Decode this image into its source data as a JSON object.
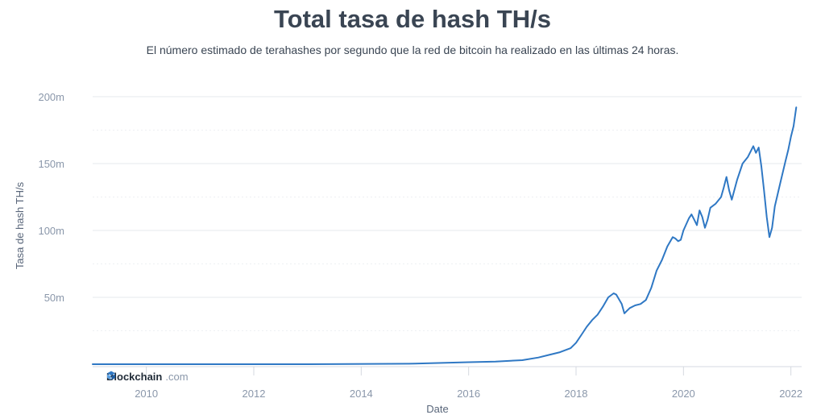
{
  "chart_data": {
    "type": "line",
    "title": "Total tasa de hash TH/s",
    "subtitle": "El número estimado de terahashes por segundo que la red de bitcoin ha realizado en las últimas 24 horas.",
    "xlabel": "Date",
    "ylabel": "Tasa de hash TH/s",
    "xlim": [
      2009.0,
      2022.2
    ],
    "ylim": [
      0,
      200000000
    ],
    "x_ticks": [
      2010,
      2012,
      2014,
      2016,
      2018,
      2020,
      2022
    ],
    "x_tick_labels": [
      "2010",
      "2012",
      "2014",
      "2016",
      "2018",
      "2020",
      "2022"
    ],
    "y_ticks": [
      50000000,
      100000000,
      150000000,
      200000000
    ],
    "y_tick_labels": [
      "50m",
      "100m",
      "150m",
      "200m"
    ],
    "grid": true,
    "line_color": "#2f78c4",
    "series": [
      {
        "x": [
          2009.0,
          2013.0,
          2015.0,
          2016.0,
          2016.5,
          2017.0,
          2017.3,
          2017.5,
          2017.7,
          2017.9,
          2018.0,
          2018.1,
          2018.2,
          2018.3,
          2018.4,
          2018.5,
          2018.6,
          2018.7,
          2018.75,
          2018.85,
          2018.9,
          2018.95,
          2019.0,
          2019.1,
          2019.2,
          2019.3,
          2019.4,
          2019.5,
          2019.6,
          2019.7,
          2019.8,
          2019.85,
          2019.9,
          2019.95,
          2020.0,
          2020.1,
          2020.15,
          2020.2,
          2020.25,
          2020.3,
          2020.35,
          2020.4,
          2020.45,
          2020.5,
          2020.6,
          2020.7,
          2020.75,
          2020.8,
          2020.85,
          2020.9,
          2021.0,
          2021.1,
          2021.2,
          2021.3,
          2021.35,
          2021.4,
          2021.45,
          2021.5,
          2021.55,
          2021.6,
          2021.65,
          2021.7,
          2021.8,
          2021.9,
          2021.95,
          2022.0,
          2022.05,
          2022.1
        ],
        "values": [
          0,
          5000,
          400000,
          1500000,
          2000000,
          3000000,
          5000000,
          7000000,
          9000000,
          12000000,
          16000000,
          22000000,
          28000000,
          33000000,
          37000000,
          43000000,
          50000000,
          53000000,
          52000000,
          45000000,
          38000000,
          40000000,
          42000000,
          44000000,
          45000000,
          48000000,
          57000000,
          70000000,
          78000000,
          88000000,
          95000000,
          94000000,
          92000000,
          93000000,
          100000000,
          109000000,
          112000000,
          108000000,
          104000000,
          115000000,
          110000000,
          102000000,
          108000000,
          117000000,
          120000000,
          125000000,
          132000000,
          140000000,
          130000000,
          123000000,
          138000000,
          150000000,
          155000000,
          163000000,
          158000000,
          162000000,
          148000000,
          130000000,
          110000000,
          95000000,
          102000000,
          118000000,
          135000000,
          152000000,
          160000000,
          170000000,
          178000000,
          192000000
        ]
      }
    ]
  },
  "brand": {
    "name": "Blockchain",
    "domain": ".com",
    "icon": "blockchain-cube-icon"
  }
}
